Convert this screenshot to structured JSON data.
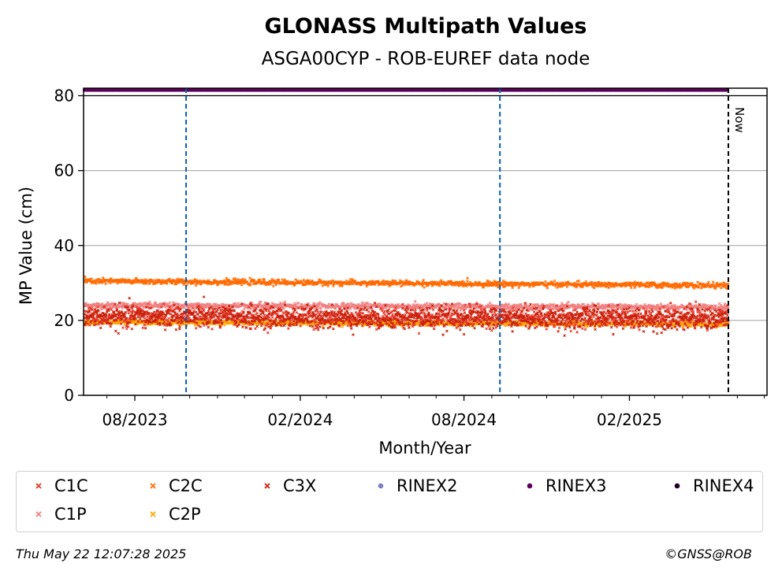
{
  "chart_data": {
    "type": "scatter",
    "title": "GLONASS Multipath Values",
    "subtitle": "ASGA00CYP - ROB-EUREF data node",
    "xlabel": "Month/Year",
    "ylabel": "MP Value (cm)",
    "ylim": [
      0,
      82
    ],
    "xlim": [
      "2023-06-05",
      "2025-07-04"
    ],
    "yticks": [
      0,
      20,
      40,
      60,
      80
    ],
    "xticks": [
      {
        "date": "2023-08-01",
        "label": "08/2023"
      },
      {
        "date": "2024-02-01",
        "label": "02/2024"
      },
      {
        "date": "2024-08-01",
        "label": "08/2024"
      },
      {
        "date": "2025-02-01",
        "label": "02/2025"
      }
    ],
    "grid": "y",
    "markers": {
      "rinex3_band": {
        "value": 81.5,
        "start": "2023-06-06",
        "end": "2025-05-21",
        "color": "#5c005c"
      },
      "blue_lines": [
        "2023-09-27",
        "2024-09-10"
      ],
      "now_line": {
        "date": "2025-05-22",
        "label": "Now"
      }
    },
    "series": [
      {
        "name": "C1C",
        "color": "#e8392b",
        "marker": "x",
        "start": "2023-06-06",
        "end": "2025-05-21",
        "mean_start": 21.0,
        "mean_end": 20.5,
        "spread": 2.5
      },
      {
        "name": "C2C",
        "color": "#ff6a00",
        "marker": "x",
        "start": "2023-06-06",
        "end": "2025-05-21",
        "mean_start": 30.5,
        "mean_end": 29.3,
        "spread": 0.7
      },
      {
        "name": "C3X",
        "color": "#c8200a",
        "marker": "x",
        "start": "2023-06-06",
        "end": "2025-05-21",
        "mean_start": 21.0,
        "mean_end": 20.5,
        "spread": 3.0
      },
      {
        "name": "C1P",
        "color": "#f08080",
        "marker": "x",
        "start": "2023-06-06",
        "end": "2025-05-21",
        "mean_start": 24.0,
        "mean_end": 23.5,
        "spread": 0.8
      },
      {
        "name": "C2P",
        "color": "#ffa500",
        "marker": "x",
        "start": "2023-06-06",
        "end": "2025-05-21",
        "mean_start": 19.5,
        "mean_end": 19.0,
        "spread": 0.6
      }
    ]
  },
  "legend": {
    "items": [
      {
        "label": "C1C",
        "color": "#e8392b",
        "shape": "x"
      },
      {
        "label": "C2C",
        "color": "#ff6a00",
        "shape": "x"
      },
      {
        "label": "C3X",
        "color": "#c8200a",
        "shape": "x"
      },
      {
        "label": "RINEX2",
        "color": "#8080c0",
        "shape": "dot"
      },
      {
        "label": "RINEX3",
        "color": "#5c005c",
        "shape": "dot"
      },
      {
        "label": "RINEX4",
        "color": "#200020",
        "shape": "dot"
      },
      {
        "label": "C1P",
        "color": "#f08080",
        "shape": "x"
      },
      {
        "label": "C2P",
        "color": "#ffa500",
        "shape": "x"
      }
    ]
  },
  "footer": {
    "timestamp": "Thu May 22 12:07:28 2025",
    "credit": "©GNSS@ROB"
  }
}
